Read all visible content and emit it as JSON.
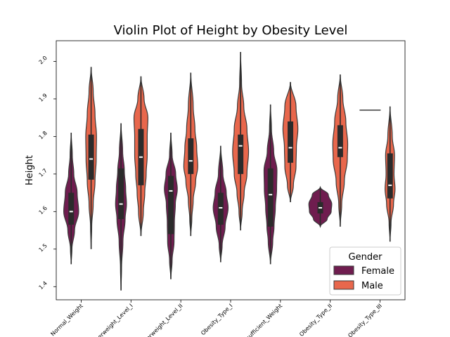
{
  "chart_data": {
    "type": "violin",
    "title": "Violin Plot of Height by Obesity Level",
    "xlabel": "",
    "ylabel": "Height",
    "ylim": [
      1.365,
      2.055
    ],
    "yticks": [
      "1.4",
      "1.5",
      "1.6",
      "1.7",
      "1.8",
      "1.9",
      "2.0"
    ],
    "ytick_values": [
      1.4,
      1.5,
      1.6,
      1.7,
      1.8,
      1.9,
      2.0
    ],
    "categories": [
      "Normal_Weight",
      "Overweight_Level_I",
      "Overweight_Level_II",
      "Obesity_Type_I",
      "Insufficient_Weight",
      "Obesity_Type_II",
      "Obesity_Type_III"
    ],
    "legend": {
      "title": "Gender",
      "position": "lower-right"
    },
    "grid": false,
    "colors": {
      "Female": "#6f1d4f",
      "Male": "#e8674c",
      "edge": "#3a3a3a",
      "box": "#2b2b2b",
      "median": "#ffffff"
    },
    "series": [
      {
        "name": "Female",
        "violins": [
          {
            "min": 1.46,
            "q1": 1.565,
            "median": 1.6,
            "q3": 1.65,
            "max": 1.81,
            "width": 0.3,
            "profile": [
              [
                1.46,
                0
              ],
              [
                1.5,
                0.1
              ],
              [
                1.55,
                0.45
              ],
              [
                1.6,
                1.0
              ],
              [
                1.65,
                0.8
              ],
              [
                1.7,
                0.35
              ],
              [
                1.75,
                0.15
              ],
              [
                1.81,
                0
              ]
            ]
          },
          {
            "min": 1.39,
            "q1": 1.58,
            "median": 1.62,
            "q3": 1.715,
            "max": 1.835,
            "width": 0.22,
            "profile": [
              [
                1.39,
                0
              ],
              [
                1.45,
                0.1
              ],
              [
                1.52,
                0.35
              ],
              [
                1.58,
                0.75
              ],
              [
                1.62,
                1.0
              ],
              [
                1.66,
                0.85
              ],
              [
                1.71,
                0.6
              ],
              [
                1.76,
                0.3
              ],
              [
                1.835,
                0
              ]
            ]
          },
          {
            "min": 1.42,
            "q1": 1.54,
            "median": 1.655,
            "q3": 1.695,
            "max": 1.81,
            "width": 0.26,
            "profile": [
              [
                1.42,
                0
              ],
              [
                1.47,
                0.2
              ],
              [
                1.52,
                0.5
              ],
              [
                1.57,
                0.55
              ],
              [
                1.62,
                0.7
              ],
              [
                1.66,
                1.0
              ],
              [
                1.7,
                0.75
              ],
              [
                1.75,
                0.2
              ],
              [
                1.81,
                0
              ]
            ]
          },
          {
            "min": 1.465,
            "q1": 1.565,
            "median": 1.61,
            "q3": 1.65,
            "max": 1.775,
            "width": 0.3,
            "profile": [
              [
                1.465,
                0
              ],
              [
                1.51,
                0.2
              ],
              [
                1.56,
                0.6
              ],
              [
                1.61,
                1.0
              ],
              [
                1.65,
                0.75
              ],
              [
                1.7,
                0.3
              ],
              [
                1.775,
                0
              ]
            ]
          },
          {
            "min": 1.46,
            "q1": 1.56,
            "median": 1.645,
            "q3": 1.715,
            "max": 1.885,
            "width": 0.26,
            "profile": [
              [
                1.46,
                0
              ],
              [
                1.52,
                0.35
              ],
              [
                1.56,
                0.55
              ],
              [
                1.61,
                0.75
              ],
              [
                1.66,
                0.95
              ],
              [
                1.71,
                1.0
              ],
              [
                1.76,
                0.5
              ],
              [
                1.82,
                0.15
              ],
              [
                1.885,
                0
              ]
            ]
          },
          {
            "min": 1.56,
            "q1": 1.595,
            "median": 1.61,
            "q3": 1.625,
            "max": 1.665,
            "width": 0.46,
            "profile": [
              [
                1.56,
                0
              ],
              [
                1.58,
                0.6
              ],
              [
                1.6,
                0.95
              ],
              [
                1.62,
                1.0
              ],
              [
                1.645,
                0.7
              ],
              [
                1.665,
                0
              ]
            ]
          },
          null
        ]
      },
      {
        "name": "Male",
        "violins": [
          {
            "min": 1.5,
            "q1": 1.685,
            "median": 1.74,
            "q3": 1.805,
            "max": 1.985,
            "width": 0.24,
            "profile": [
              [
                1.5,
                0
              ],
              [
                1.56,
                0.1
              ],
              [
                1.62,
                0.35
              ],
              [
                1.68,
                0.65
              ],
              [
                1.74,
                0.85
              ],
              [
                1.8,
                0.9
              ],
              [
                1.86,
                0.65
              ],
              [
                1.92,
                0.35
              ],
              [
                1.985,
                0
              ]
            ]
          },
          {
            "min": 1.535,
            "q1": 1.67,
            "median": 1.745,
            "q3": 1.82,
            "max": 1.96,
            "width": 0.28,
            "profile": [
              [
                1.535,
                0
              ],
              [
                1.6,
                0.35
              ],
              [
                1.65,
                0.55
              ],
              [
                1.7,
                0.75
              ],
              [
                1.75,
                0.9
              ],
              [
                1.8,
                0.9
              ],
              [
                1.85,
                1.0
              ],
              [
                1.9,
                0.45
              ],
              [
                1.96,
                0
              ]
            ]
          },
          {
            "min": 1.535,
            "q1": 1.7,
            "median": 1.735,
            "q3": 1.795,
            "max": 1.97,
            "width": 0.28,
            "profile": [
              [
                1.535,
                0
              ],
              [
                1.58,
                0.15
              ],
              [
                1.63,
                0.35
              ],
              [
                1.68,
                0.7
              ],
              [
                1.72,
                1.0
              ],
              [
                1.77,
                0.85
              ],
              [
                1.82,
                0.6
              ],
              [
                1.88,
                0.35
              ],
              [
                1.97,
                0
              ]
            ]
          },
          {
            "min": 1.55,
            "q1": 1.7,
            "median": 1.775,
            "q3": 1.805,
            "max": 2.025,
            "width": 0.32,
            "profile": [
              [
                1.55,
                0
              ],
              [
                1.6,
                0.2
              ],
              [
                1.65,
                0.45
              ],
              [
                1.7,
                0.8
              ],
              [
                1.76,
                1.0
              ],
              [
                1.82,
                0.8
              ],
              [
                1.88,
                0.4
              ],
              [
                1.94,
                0.12
              ],
              [
                2.025,
                0
              ]
            ]
          },
          {
            "min": 1.625,
            "q1": 1.73,
            "median": 1.77,
            "q3": 1.84,
            "max": 1.945,
            "width": 0.3,
            "profile": [
              [
                1.625,
                0
              ],
              [
                1.67,
                0.4
              ],
              [
                1.72,
                0.75
              ],
              [
                1.77,
                0.8
              ],
              [
                1.82,
                1.0
              ],
              [
                1.88,
                0.75
              ],
              [
                1.945,
                0
              ]
            ]
          },
          {
            "min": 1.56,
            "q1": 1.745,
            "median": 1.77,
            "q3": 1.83,
            "max": 1.965,
            "width": 0.3,
            "profile": [
              [
                1.56,
                0
              ],
              [
                1.62,
                0.2
              ],
              [
                1.68,
                0.55
              ],
              [
                1.74,
                0.95
              ],
              [
                1.78,
                1.0
              ],
              [
                1.84,
                0.75
              ],
              [
                1.9,
                0.35
              ],
              [
                1.965,
                0
              ]
            ]
          },
          {
            "min": 1.52,
            "q1": 1.635,
            "median": 1.67,
            "q3": 1.755,
            "max": 1.88,
            "width": 0.2,
            "profile": [
              [
                1.52,
                0
              ],
              [
                1.57,
                0.2
              ],
              [
                1.62,
                0.7
              ],
              [
                1.66,
                1.0
              ],
              [
                1.7,
                0.8
              ],
              [
                1.75,
                0.9
              ],
              [
                1.8,
                0.45
              ],
              [
                1.88,
                0
              ]
            ]
          }
        ]
      }
    ],
    "extra_marks": [
      {
        "category": "Obesity_Type_III",
        "group": "Female",
        "type": "flat-line",
        "y": 1.87
      }
    ]
  }
}
